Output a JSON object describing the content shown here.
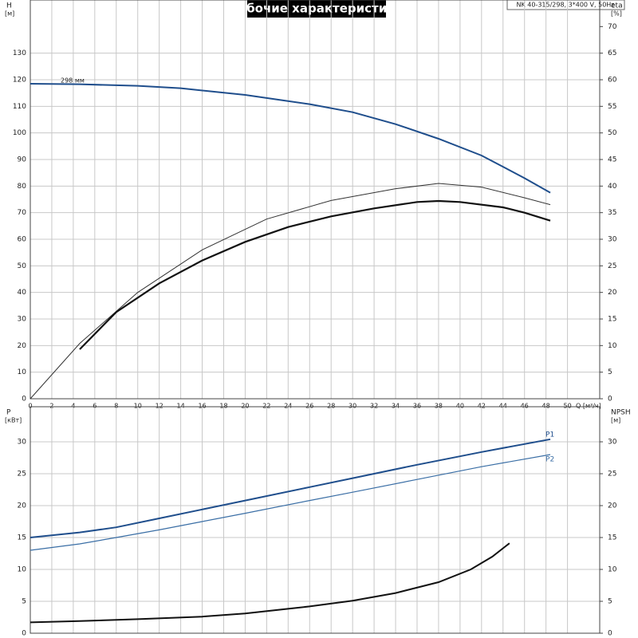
{
  "chart_data": [
    {
      "type": "line",
      "title": "Рабочие характеристики",
      "annotations": [
        "NK 40-315/298, 3*400 V, 50Hz"
      ],
      "xlabel": "Q [м³/ч]",
      "ylabel": "H",
      "ylabel_unit": "[м]",
      "y2label": "eta",
      "y2label_unit": "[%]",
      "xlim": [
        0,
        53
      ],
      "xticks": [
        0,
        2,
        4,
        6,
        8,
        10,
        12,
        14,
        16,
        18,
        20,
        22,
        24,
        26,
        28,
        30,
        32,
        34,
        36,
        38,
        40,
        42,
        44,
        46,
        48,
        50
      ],
      "ylim": [
        0,
        150
      ],
      "yticks": [
        0,
        10,
        20,
        30,
        40,
        50,
        60,
        70,
        80,
        90,
        100,
        110,
        120,
        130
      ],
      "y2lim": [
        0,
        75
      ],
      "y2ticks": [
        0,
        5,
        10,
        15,
        20,
        25,
        30,
        35,
        40,
        45,
        50,
        55,
        60,
        65,
        70
      ],
      "grid": true,
      "series": [
        {
          "name": "298 мм",
          "color": "#1f4e8c",
          "line_width": 2,
          "x": [
            0,
            4.6,
            10,
            14,
            20,
            26,
            30,
            34,
            38,
            42,
            46,
            48.4
          ],
          "values": [
            118.5,
            118.3,
            117.7,
            116.8,
            114.3,
            110.8,
            107.8,
            103.3,
            97.8,
            91.5,
            83,
            77.5
          ]
        },
        {
          "color": "#333333",
          "line_width": 1,
          "axis": "y2",
          "x": [
            0,
            4.6,
            10,
            16,
            22,
            28,
            34,
            38,
            42,
            46,
            48.4
          ],
          "values": [
            0,
            10.4,
            20,
            28,
            33.8,
            37.3,
            39.5,
            40.5,
            39.8,
            37.8,
            36.5
          ]
        },
        {
          "color": "#111111",
          "line_width": 2.2,
          "axis": "y2",
          "x": [
            4.6,
            8,
            12,
            16,
            20,
            24,
            28,
            32,
            36,
            38,
            40,
            44,
            46,
            48.4
          ],
          "values": [
            9.3,
            16.3,
            21.7,
            26,
            29.5,
            32.3,
            34.3,
            35.8,
            37,
            37.2,
            37,
            36,
            35,
            33.5
          ]
        }
      ]
    },
    {
      "type": "line",
      "ylabel": "P",
      "ylabel_unit": "[кВт]",
      "y2label": "NPSH",
      "y2label_unit": "[м]",
      "xlim": [
        0,
        53
      ],
      "xticks": [
        0,
        2,
        4,
        6,
        8,
        10,
        12,
        14,
        16,
        18,
        20,
        22,
        24,
        26,
        28,
        30,
        32,
        34,
        36,
        38,
        40,
        42,
        44,
        46,
        48,
        50
      ],
      "ylim": [
        0,
        35.5
      ],
      "yticks": [
        0,
        5,
        10,
        15,
        20,
        25,
        30
      ],
      "y2lim": [
        0,
        35.5
      ],
      "y2ticks": [
        0,
        5,
        10,
        15,
        20,
        25,
        30
      ],
      "grid": true,
      "series": [
        {
          "name": "P1",
          "color": "#1f4e8c",
          "line_width": 2,
          "x": [
            0,
            4.6,
            8,
            12,
            16,
            20,
            26,
            30,
            36,
            42,
            48.4
          ],
          "values": [
            15,
            15.8,
            16.6,
            18,
            19.4,
            20.8,
            22.9,
            24.3,
            26.4,
            28.4,
            30.4
          ]
        },
        {
          "name": "P2",
          "color": "#3a6ea5",
          "line_width": 1.2,
          "x": [
            0,
            4.6,
            8,
            12,
            16,
            20,
            26,
            30,
            36,
            42,
            48.4
          ],
          "values": [
            13,
            14,
            15,
            16.2,
            17.5,
            18.8,
            20.8,
            22.1,
            24.1,
            26.1,
            28
          ]
        },
        {
          "color": "#111111",
          "line_width": 2,
          "axis": "y2",
          "x": [
            0,
            4.6,
            10,
            16,
            20,
            26,
            30,
            34,
            38,
            41,
            43,
            44.6
          ],
          "values": [
            1.7,
            1.9,
            2.2,
            2.6,
            3.1,
            4.2,
            5.1,
            6.3,
            8,
            10,
            12,
            14.1
          ]
        }
      ]
    }
  ]
}
